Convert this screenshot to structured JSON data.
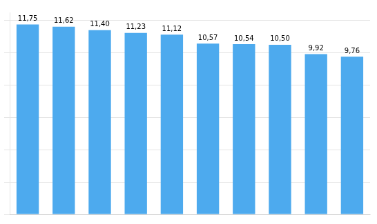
{
  "chart_data": {
    "type": "bar",
    "categories": [
      null,
      null,
      null,
      null,
      null,
      null,
      null,
      null,
      null,
      null
    ],
    "values": [
      11.75,
      11.62,
      11.4,
      11.23,
      11.12,
      10.57,
      10.54,
      10.5,
      9.92,
      9.76
    ],
    "value_labels": [
      "11,75",
      "11,62",
      "11,40",
      "11,23",
      "11,12",
      "10,57",
      "10,54",
      "10,50",
      "9,92",
      "9,76"
    ],
    "color": "#4DAAEE",
    "ylim": [
      0,
      12.5
    ],
    "yticks": [
      0,
      2,
      4,
      6,
      8,
      10,
      12
    ],
    "grid": true,
    "data_labels": true,
    "tick_labels": false
  }
}
